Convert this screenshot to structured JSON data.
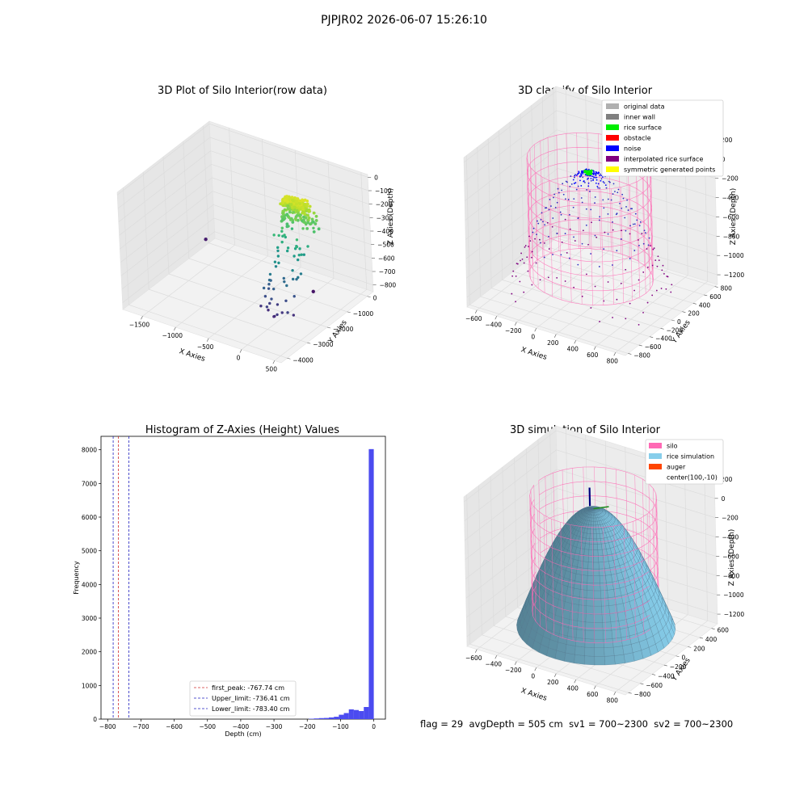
{
  "suptitle": "PJPJR02 2026-06-07 15:26:10",
  "status_line": {
    "flag": "flag = 29",
    "avg_depth": "avgDepth = 505 cm",
    "sv1": "sv1 = 700~2300",
    "sv2": "sv2 = 700~2300"
  },
  "chart_data": [
    {
      "id": "raw",
      "type": "scatter",
      "title": "3D Plot of Silo Interior(row data)",
      "xlabel": "X Axies",
      "ylabel": "Y Axies",
      "zlabel": "Z Axies (Depth)",
      "x_ticks": [
        "−1500",
        "−1000",
        "−500",
        "0",
        "500"
      ],
      "y_ticks": [
        "0",
        "−1000",
        "−2000",
        "−3000",
        "−4000"
      ],
      "z_ticks": [
        "0",
        "−100",
        "−200",
        "−300",
        "−400",
        "−500",
        "−600",
        "−700",
        "−800"
      ],
      "xlim": [
        -1800,
        600
      ],
      "ylim": [
        -4300,
        300
      ],
      "zlim": [
        -850,
        20
      ],
      "colormap": "viridis",
      "cluster": {
        "center_x": 100,
        "center_y": -10,
        "top_depth": -20,
        "bottom_depth": -800
      },
      "outliers": [
        [
          -1750,
          -300,
          -780
        ],
        [
          60,
          -900,
          -800
        ]
      ]
    },
    {
      "id": "classify",
      "type": "scatter",
      "title": "3D classify of Silo Interior",
      "xlabel": "X Axies",
      "ylabel": "Y Axies",
      "zlabel": "Z Axies (Depth)",
      "x_ticks": [
        "−600",
        "−400",
        "−200",
        "0",
        "200",
        "400",
        "600",
        "800"
      ],
      "y_ticks": [
        "800",
        "600",
        "400",
        "200",
        "0",
        "−200",
        "−400",
        "−600",
        "−800"
      ],
      "z_ticks": [
        "200",
        "0",
        "−200",
        "−400",
        "−600",
        "−800",
        "−1000",
        "−1200"
      ],
      "xlim": [
        -700,
        900
      ],
      "ylim": [
        -850,
        850
      ],
      "zlim": [
        -1300,
        250
      ],
      "legend": [
        {
          "label": "original data",
          "color": "#b0b0b0"
        },
        {
          "label": "inner wall",
          "color": "#808080"
        },
        {
          "label": "rice surface",
          "color": "#00ee00"
        },
        {
          "label": "obstacle",
          "color": "#ff0000"
        },
        {
          "label": "noise",
          "color": "#0000ff"
        },
        {
          "label": "interpolated rice surface",
          "color": "#800080"
        },
        {
          "label": "symmetric generated points",
          "color": "#ffff00"
        }
      ],
      "silo": {
        "radius": 550,
        "top": 100,
        "bottom": -1100
      },
      "rice_surface": {
        "peak": -20,
        "base": -1250
      }
    },
    {
      "id": "hist",
      "type": "bar",
      "title": "Histogram of Z-Axies (Height) Values",
      "xlabel": "Depth (cm)",
      "ylabel": "Frequency",
      "xlim": [
        -820,
        35
      ],
      "ylim": [
        0,
        8400
      ],
      "x_ticks": [
        -800,
        -700,
        -600,
        -500,
        -400,
        -300,
        -200,
        -100,
        0
      ],
      "y_ticks": [
        0,
        1000,
        2000,
        3000,
        4000,
        5000,
        6000,
        7000,
        8000
      ],
      "bin_width": 15,
      "bar_color": "#4b4bf0",
      "bins": [
        {
          "start": -195,
          "count": 12
        },
        {
          "start": -180,
          "count": 20
        },
        {
          "start": -165,
          "count": 30
        },
        {
          "start": -150,
          "count": 35
        },
        {
          "start": -135,
          "count": 50
        },
        {
          "start": -120,
          "count": 70
        },
        {
          "start": -105,
          "count": 130
        },
        {
          "start": -90,
          "count": 180
        },
        {
          "start": -75,
          "count": 290
        },
        {
          "start": -60,
          "count": 270
        },
        {
          "start": -45,
          "count": 240
        },
        {
          "start": -30,
          "count": 360
        },
        {
          "start": -15,
          "count": 8020
        }
      ],
      "vlines": [
        {
          "x": -767.74,
          "color": "#d03030",
          "label": "first_peak: -767.74 cm"
        },
        {
          "x": -736.41,
          "color": "#2020c0",
          "label": "Upper_limit: -736.41 cm"
        },
        {
          "x": -783.4,
          "color": "#2020c0",
          "label": "Lower_limit: -783.40 cm"
        }
      ]
    },
    {
      "id": "sim",
      "type": "surface",
      "title": "3D simulation of Silo Interior",
      "xlabel": "X Axies",
      "ylabel": "Y Axies",
      "zlabel": "Z Axies (Depth)",
      "x_ticks": [
        "−600",
        "−400",
        "−200",
        "0",
        "200",
        "400",
        "600",
        "800"
      ],
      "y_ticks": [
        "600",
        "400",
        "200",
        "0",
        "−200",
        "−400",
        "−600",
        "−800"
      ],
      "z_ticks": [
        "200",
        "0",
        "−200",
        "−400",
        "−600",
        "−800",
        "−1000",
        "−1200"
      ],
      "xlim": [
        -700,
        900
      ],
      "ylim": [
        -850,
        700
      ],
      "zlim": [
        -1300,
        250
      ],
      "legend": [
        {
          "label": "silo",
          "color": "#ff69b4"
        },
        {
          "label": "rice simulation",
          "color": "#87ceeb"
        },
        {
          "label": "auger",
          "color": "#ff4500"
        },
        {
          "label": "center(100,-10)",
          "color": "none"
        }
      ],
      "center": [
        100,
        -10
      ],
      "silo": {
        "radius": 550,
        "top": 100,
        "bottom": -1100
      },
      "rice_surface": {
        "peak": -20,
        "base": -1250
      }
    }
  ]
}
